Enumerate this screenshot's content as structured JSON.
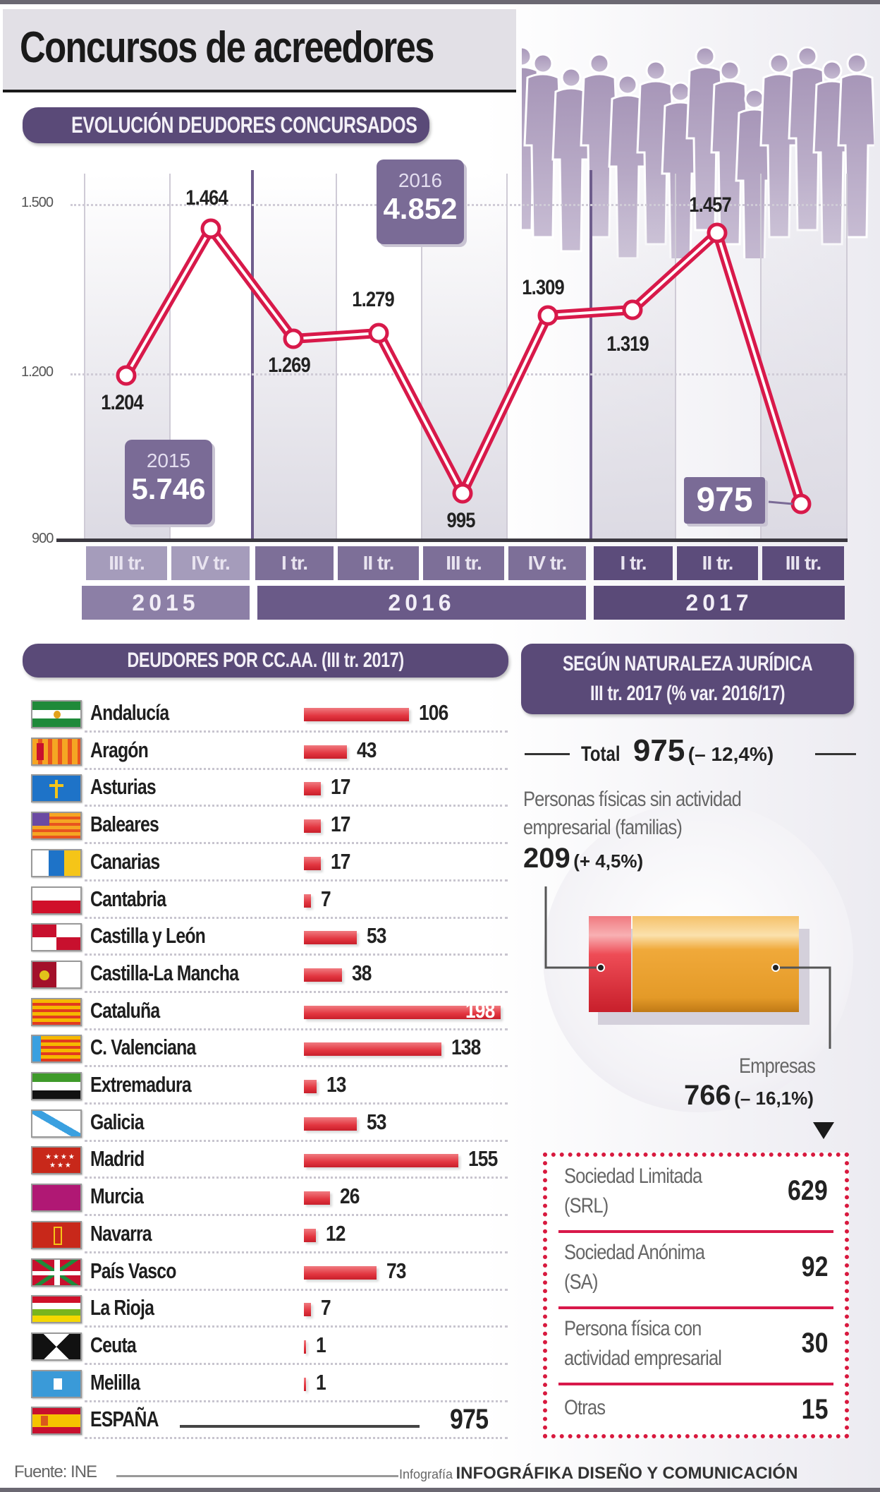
{
  "title": "Concursos de acreedores",
  "section_evolution": {
    "pill_label": "EVOLUCIÓN DEUDORES CONCURSADOS",
    "y_ticks": [
      "1.500",
      "1.200",
      "900"
    ],
    "annual_totals": [
      {
        "year": "2015",
        "total": "5.746"
      },
      {
        "year": "2016",
        "total": "4.852"
      }
    ],
    "latest_callout": "975",
    "quarter_labels": [
      "III tr.",
      "IV tr.",
      "I tr.",
      "II tr.",
      "III tr.",
      "IV tr.",
      "I tr.",
      "II tr.",
      "III tr."
    ],
    "year_labels": [
      "2015",
      "2016",
      "2017"
    ],
    "point_labels": [
      "1.204",
      "1.464",
      "1.269",
      "1.279",
      "995",
      "1.309",
      "1.319",
      "1.457",
      "975"
    ]
  },
  "chart_data": [
    {
      "type": "line",
      "title": "EVOLUCIÓN DEUDORES CONCURSADOS",
      "categories": [
        "2015 III tr.",
        "2015 IV tr.",
        "2016 I tr.",
        "2016 II tr.",
        "2016 III tr.",
        "2016 IV tr.",
        "2017 I tr.",
        "2017 II tr.",
        "2017 III tr."
      ],
      "values": [
        1204,
        1464,
        1269,
        1279,
        995,
        1309,
        1319,
        1457,
        975
      ],
      "xlabel": "",
      "ylabel": "",
      "ylim": [
        900,
        1600
      ],
      "yticks": [
        900,
        1200,
        1500
      ],
      "grid": true,
      "annotations": [
        "2015: 5.746",
        "2016: 4.852",
        "975"
      ]
    },
    {
      "type": "bar",
      "title": "DEUDORES POR CC.AA. (III tr. 2017)",
      "orientation": "horizontal",
      "categories": [
        "Andalucía",
        "Aragón",
        "Asturias",
        "Baleares",
        "Canarias",
        "Cantabria",
        "Castilla y León",
        "Castilla-La Mancha",
        "Cataluña",
        "C. Valenciana",
        "Extremadura",
        "Galicia",
        "Madrid",
        "Murcia",
        "Navarra",
        "País Vasco",
        "La Rioja",
        "Ceuta",
        "Melilla"
      ],
      "values": [
        106,
        43,
        17,
        17,
        17,
        7,
        53,
        38,
        198,
        138,
        13,
        53,
        155,
        26,
        12,
        73,
        7,
        1,
        1
      ],
      "total": {
        "label": "ESPAÑA",
        "value": 975
      }
    },
    {
      "type": "bar",
      "title": "SEGÚN NATURALEZA JURÍDICA III tr. 2017 (% var. 2016/17)",
      "orientation": "stacked-horizontal",
      "categories": [
        "Personas físicas sin actividad empresarial (familias)",
        "Empresas"
      ],
      "values": [
        209,
        766
      ],
      "pct_change": [
        "+4,5%",
        "-16,1%"
      ],
      "total": {
        "value": 975,
        "pct_change": "-12,4%"
      },
      "breakdown_empresas": {
        "categories": [
          "Sociedad Limitada (SRL)",
          "Sociedad Anónima (SA)",
          "Persona física con actividad empresarial",
          "Otras"
        ],
        "values": [
          629,
          92,
          30,
          15
        ]
      }
    }
  ],
  "section_regions": {
    "pill_label": "DEUDORES POR CC.AA. (III tr. 2017)",
    "rows": [
      {
        "name": "Andalucía",
        "value": "106",
        "n": 106,
        "flag": "andalucia"
      },
      {
        "name": "Aragón",
        "value": "43",
        "n": 43,
        "flag": "aragon"
      },
      {
        "name": "Asturias",
        "value": "17",
        "n": 17,
        "flag": "asturias"
      },
      {
        "name": "Baleares",
        "value": "17",
        "n": 17,
        "flag": "baleares"
      },
      {
        "name": "Canarias",
        "value": "17",
        "n": 17,
        "flag": "canarias"
      },
      {
        "name": "Cantabria",
        "value": "7",
        "n": 7,
        "flag": "cantabria"
      },
      {
        "name": "Castilla y León",
        "value": "53",
        "n": 53,
        "flag": "cyl"
      },
      {
        "name": "Castilla-La Mancha",
        "value": "38",
        "n": 38,
        "flag": "clm"
      },
      {
        "name": "Cataluña",
        "value": "198",
        "n": 198,
        "flag": "cataluna"
      },
      {
        "name": "C. Valenciana",
        "value": "138",
        "n": 138,
        "flag": "valencia"
      },
      {
        "name": "Extremadura",
        "value": "13",
        "n": 13,
        "flag": "extremadura"
      },
      {
        "name": "Galicia",
        "value": "53",
        "n": 53,
        "flag": "galicia"
      },
      {
        "name": "Madrid",
        "value": "155",
        "n": 155,
        "flag": "madrid"
      },
      {
        "name": "Murcia",
        "value": "26",
        "n": 26,
        "flag": "murcia"
      },
      {
        "name": "Navarra",
        "value": "12",
        "n": 12,
        "flag": "navarra"
      },
      {
        "name": "País Vasco",
        "value": "73",
        "n": 73,
        "flag": "paisvasco"
      },
      {
        "name": "La Rioja",
        "value": "7",
        "n": 7,
        "flag": "rioja"
      },
      {
        "name": "Ceuta",
        "value": "1",
        "n": 1,
        "flag": "ceuta"
      },
      {
        "name": "Melilla",
        "value": "1",
        "n": 1,
        "flag": "melilla"
      }
    ],
    "total_row": {
      "name": "ESPAÑA",
      "value": "975",
      "flag": "espana"
    }
  },
  "section_legal": {
    "pill_line1": "SEGÚN NATURALEZA JURÍDICA",
    "pill_line2": "III tr. 2017 (% var. 2016/17)",
    "total_prefix": "Total",
    "total_value": "975",
    "total_change": "(– 12,4%)",
    "familias_line1": "Personas físicas sin actividad",
    "familias_line2": "empresarial (familias)",
    "familias_value": "209",
    "familias_change": "(+ 4,5%)",
    "empresas_label": "Empresas",
    "empresas_value": "766",
    "empresas_change": "(– 16,1%)",
    "breakdown": [
      {
        "line1": "Sociedad Limitada",
        "line2": "(SRL)",
        "value": "629"
      },
      {
        "line1": "Sociedad Anónima",
        "line2": "(SA)",
        "value": "92"
      },
      {
        "line1": "Persona física con",
        "line2": "actividad empresarial",
        "value": "30"
      },
      {
        "line1": "Otras",
        "line2": "",
        "value": "15"
      }
    ]
  },
  "footer": {
    "source": "Fuente: INE",
    "credit_prefix": "Infografía",
    "credit": "INFOGRÁFIKA DISEÑO Y COMUNICACIÓN"
  },
  "colors": {
    "purple_dark": "#5a4a78",
    "purple_mid": "#7d6f98",
    "purple_light": "#a59cbb",
    "line_red": "#d8194a",
    "bar_red": "#e2353f",
    "orange": "#f0a93a"
  }
}
